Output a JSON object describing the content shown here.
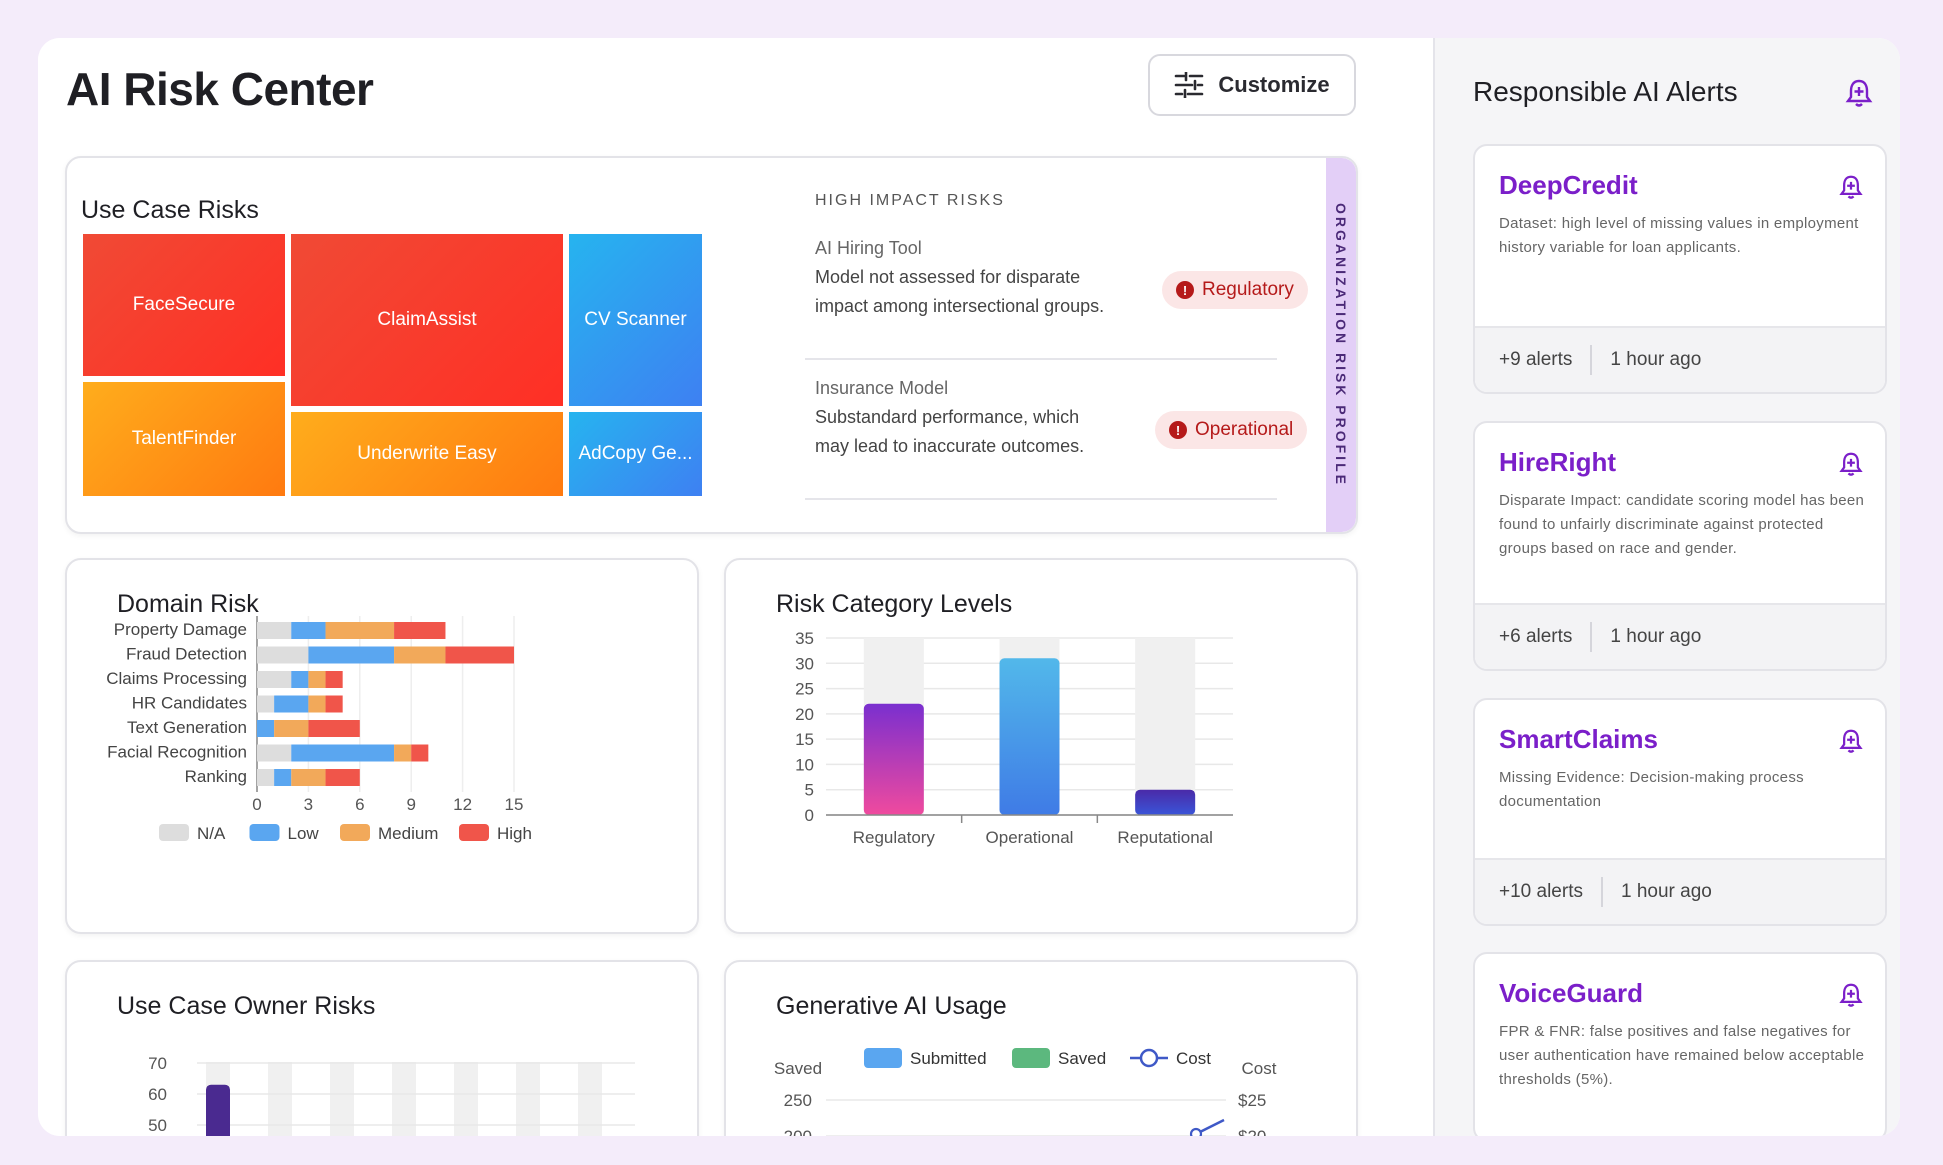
{
  "header": {
    "title": "AI Risk Center",
    "customize_label": "Customize"
  },
  "use_case_risks": {
    "title": "Use Case Risks",
    "tiles": [
      {
        "label": "FaceSecure",
        "level": "high"
      },
      {
        "label": "ClaimAssist",
        "level": "high"
      },
      {
        "label": "CV Scanner",
        "level": "low"
      },
      {
        "label": "TalentFinder",
        "level": "medium"
      },
      {
        "label": "Underwrite Easy",
        "level": "medium"
      },
      {
        "label": "AdCopy Ge...",
        "level": "low"
      }
    ],
    "high_impact_heading": "HIGH IMPACT RISKS",
    "high_impact": [
      {
        "name": "AI Hiring Tool",
        "description": "Model not assessed for disparate impact among intersectional groups.",
        "tag": "Regulatory"
      },
      {
        "name": "Insurance Model",
        "description": "Substandard performance, which may lead to inaccurate outcomes.",
        "tag": "Operational"
      }
    ],
    "side_tab": "ORGANIZATION RISK PROFILE"
  },
  "colors": {
    "na": "#dddddd",
    "low": "#5aa6f0",
    "medium": "#f2a95a",
    "high": "#f0554a",
    "accent": "#7b1fc9"
  },
  "domain_risk": {
    "title": "Domain Risk",
    "chart_data": {
      "type": "bar",
      "orientation": "horizontal",
      "stacked": true,
      "categories": [
        "Property Damage",
        "Fraud Detection",
        "Claims Processing",
        "HR Candidates",
        "Text Generation",
        "Facial Recognition",
        "Ranking"
      ],
      "series": [
        {
          "name": "N/A",
          "values": [
            2,
            3,
            2,
            1,
            0,
            2,
            1
          ]
        },
        {
          "name": "Low",
          "values": [
            2,
            5,
            1,
            2,
            1,
            6,
            1
          ]
        },
        {
          "name": "Medium",
          "values": [
            4,
            3,
            1,
            1,
            2,
            1,
            2
          ]
        },
        {
          "name": "High",
          "values": [
            3,
            4,
            1,
            1,
            3,
            1,
            2
          ]
        }
      ],
      "x_ticks": [
        "0",
        "3",
        "6",
        "9",
        "12",
        "15"
      ],
      "xlim": [
        0,
        15
      ],
      "legend": "bottom"
    }
  },
  "risk_category": {
    "title": "Risk Category Levels",
    "chart_data": {
      "type": "bar",
      "categories": [
        "Regulatory",
        "Operational",
        "Reputational"
      ],
      "values": [
        22,
        31,
        5
      ],
      "ylim": [
        0,
        35
      ],
      "y_ticks": [
        "0",
        "5",
        "10",
        "15",
        "20",
        "25",
        "30",
        "35"
      ]
    }
  },
  "owner_risks": {
    "title": "Use Case Owner Risks",
    "chart_data": {
      "type": "bar",
      "y_ticks": [
        "70",
        "60",
        "50"
      ],
      "values": [
        63
      ]
    }
  },
  "gen_ai": {
    "title": "Generative AI Usage",
    "left_axis_label": "Saved",
    "right_axis_label": "Cost",
    "legend": [
      "Submitted",
      "Saved",
      "Cost"
    ],
    "chart_data": {
      "type": "bar",
      "series": [
        {
          "name": "Submitted"
        },
        {
          "name": "Saved"
        },
        {
          "name": "Cost"
        }
      ],
      "y_ticks_left": [
        "250",
        "200"
      ],
      "y_ticks_right": [
        "$25",
        "$20"
      ]
    }
  },
  "alerts": {
    "title": "Responsible AI Alerts",
    "items": [
      {
        "name": "DeepCredit",
        "description": "Dataset: high level of missing values in employment history variable for loan applicants.",
        "count": "+9 alerts",
        "time": "1 hour ago"
      },
      {
        "name": "HireRight",
        "description": "Disparate Impact: candidate scoring model has been found to unfairly discriminate against protected groups based on race and gender.",
        "count": "+6 alerts",
        "time": "1 hour ago"
      },
      {
        "name": "SmartClaims",
        "description": "Missing Evidence: Decision-making process documentation",
        "count": "+10 alerts",
        "time": "1 hour ago"
      },
      {
        "name": "VoiceGuard",
        "description": "FPR & FNR: false positives and false negatives for user authentication have remained below acceptable thresholds (5%).",
        "count": "",
        "time": ""
      }
    ]
  }
}
